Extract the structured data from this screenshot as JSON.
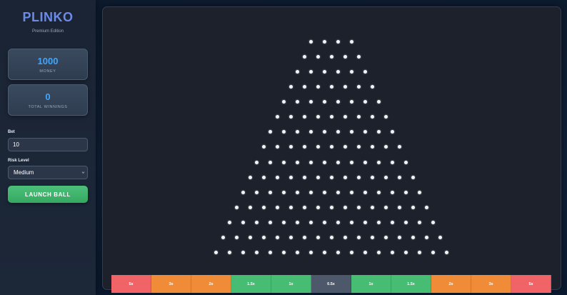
{
  "app": {
    "title": "PLINKO",
    "subtitle": "Premium Edition"
  },
  "stats": {
    "money": {
      "value": "1000",
      "label": "MONEY"
    },
    "winnings": {
      "value": "0",
      "label": "TOTAL WINNINGS"
    }
  },
  "bet": {
    "label": "Bet",
    "value": "10"
  },
  "risk": {
    "label": "Risk Level",
    "selected": "Medium"
  },
  "launch": {
    "label": "LAUNCH BALL"
  },
  "board": {
    "rows": 15,
    "first_row_pegs": 4
  },
  "slots": [
    {
      "label": "5x",
      "color": "#f06467"
    },
    {
      "label": "3x",
      "color": "#f08c37"
    },
    {
      "label": "2x",
      "color": "#f08c37"
    },
    {
      "label": "1.5x",
      "color": "#47bd73"
    },
    {
      "label": "1x",
      "color": "#47bd73"
    },
    {
      "label": "0.5x",
      "color": "#4d596b"
    },
    {
      "label": "1x",
      "color": "#47bd73"
    },
    {
      "label": "1.5x",
      "color": "#47bd73"
    },
    {
      "label": "2x",
      "color": "#f08c37"
    },
    {
      "label": "3x",
      "color": "#f08c37"
    },
    {
      "label": "5x",
      "color": "#f06467"
    }
  ]
}
